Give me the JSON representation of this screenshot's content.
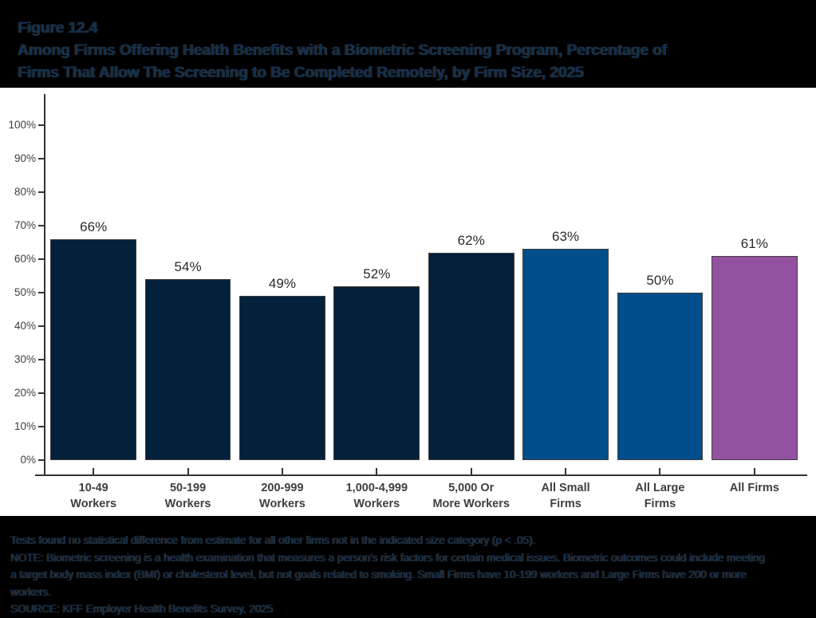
{
  "figure": {
    "label": "Figure 12.4",
    "title_line1": "Among Firms Offering Health Benefits with a Biometric Screening Program, Percentage of",
    "title_line2": "Firms That Allow The Screening to Be Completed Remotely, by Firm Size, 2025"
  },
  "chart_data": {
    "type": "bar",
    "title": "Among Firms Offering Health Benefits with a Biometric Screening Program, Percentage of Firms That Allow The Screening to Be Completed Remotely, by Firm Size, 2025",
    "categories": [
      [
        "10-49",
        "Workers"
      ],
      [
        "50-199",
        "Workers"
      ],
      [
        "200-999",
        "Workers"
      ],
      [
        "1,000-4,999",
        "Workers"
      ],
      [
        "5,000 Or",
        "More Workers"
      ],
      [
        "All Small",
        "Firms"
      ],
      [
        "All Large",
        "Firms"
      ],
      [
        "All Firms"
      ]
    ],
    "values": [
      66,
      54,
      49,
      52,
      62,
      63,
      50,
      61
    ],
    "value_labels": [
      "66%",
      "54%",
      "49%",
      "52%",
      "62%",
      "63%",
      "50%",
      "61%"
    ],
    "bar_colors": [
      "#03213A",
      "#03213A",
      "#03213A",
      "#03213A",
      "#03213A",
      "#004F8A",
      "#004F8A",
      "#94519F"
    ],
    "xlabel": "",
    "ylabel": "",
    "ylim": [
      0,
      100
    ],
    "yticks": [
      0,
      10,
      20,
      30,
      40,
      50,
      60,
      70,
      80,
      90,
      100
    ],
    "ytick_labels": [
      "0%",
      "10%",
      "20%",
      "30%",
      "40%",
      "50%",
      "60%",
      "70%",
      "80%",
      "90%",
      "100%"
    ],
    "grid": false,
    "legend_position": "none"
  },
  "footnotes": {
    "stat_note": "Tests found no statistical difference from estimate for all other firms not in the indicated size category (p < .05).",
    "note": "NOTE: Biometric screening is a health examination that measures a person's risk factors for certain medical issues. Biometric outcomes could include meeting a target body mass index (BMI) or cholesterol level, but not goals related to smoking. Small Firms have 10-199 workers and Large Firms have 200 or more workers.",
    "source": "SOURCE: KFF Employer Health Benefits Survey, 2025"
  },
  "colors": {
    "band_background": "#000000",
    "band_text": "#12304E",
    "panel_background": "#FFFFFF",
    "axis": "#333333",
    "tick_label": "#404040",
    "value_label": "#2B2B2B",
    "bar_dark_navy": "#03213A",
    "bar_blue": "#004F8A",
    "bar_purple": "#94519F",
    "bar_border": "#404040"
  }
}
